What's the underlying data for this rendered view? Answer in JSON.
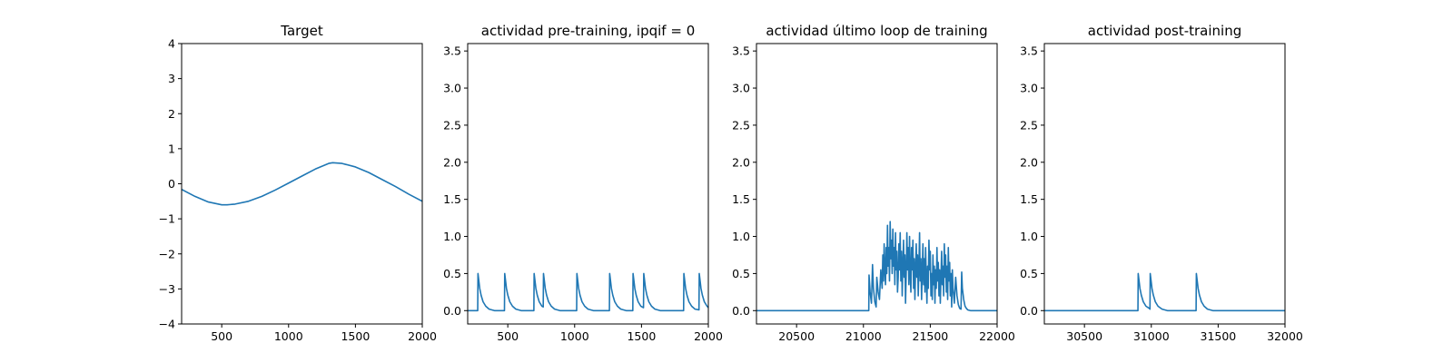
{
  "colors": {
    "line": "#1f77b4",
    "axis": "#000000",
    "background": "#ffffff"
  },
  "chart_data": [
    {
      "type": "line",
      "title": "Target",
      "xlim": [
        200,
        2000
      ],
      "ylim": [
        -4,
        4
      ],
      "xticks": [
        500,
        1000,
        1500,
        2000
      ],
      "yticks": [
        -4,
        -3,
        -2,
        -1,
        0,
        1,
        2,
        3,
        4
      ],
      "ytick_labels": [
        "−4",
        "−3",
        "−2",
        "−1",
        "0",
        "1",
        "2",
        "3",
        "4"
      ],
      "grid": false,
      "series": [
        {
          "x": [
            200,
            300,
            400,
            500,
            540,
            600,
            700,
            800,
            900,
            1000,
            1100,
            1200,
            1300,
            1330,
            1400,
            1500,
            1600,
            1700,
            1800,
            1900,
            2000
          ],
          "y": [
            -0.16,
            -0.36,
            -0.52,
            -0.6,
            -0.6,
            -0.58,
            -0.5,
            -0.36,
            -0.18,
            0.02,
            0.22,
            0.42,
            0.58,
            0.6,
            0.58,
            0.48,
            0.32,
            0.12,
            -0.08,
            -0.3,
            -0.5
          ]
        }
      ]
    },
    {
      "type": "line",
      "title": "actividad pre-training, ipqif = 0",
      "xlim": [
        200,
        2000
      ],
      "ylim": [
        -0.18,
        3.6
      ],
      "xticks": [
        500,
        1000,
        1500,
        2000
      ],
      "yticks": [
        0.0,
        0.5,
        1.0,
        1.5,
        2.0,
        2.5,
        3.0,
        3.5
      ],
      "ytick_labels": [
        "0.0",
        "0.5",
        "1.0",
        "1.5",
        "2.0",
        "2.5",
        "3.0",
        "3.5"
      ],
      "grid": false,
      "series": [
        {
          "x": [
            200,
            275,
            277,
            290,
            300,
            315,
            335,
            360,
            400,
            470,
            475,
            477,
            490,
            500,
            515,
            535,
            560,
            600,
            695,
            697,
            710,
            720,
            735,
            755,
            765,
            767,
            780,
            790,
            805,
            825,
            850,
            890,
            960,
            1015,
            1017,
            1030,
            1040,
            1055,
            1075,
            1100,
            1140,
            1260,
            1262,
            1275,
            1285,
            1300,
            1320,
            1345,
            1385,
            1435,
            1437,
            1450,
            1460,
            1475,
            1495,
            1515,
            1517,
            1530,
            1540,
            1555,
            1575,
            1600,
            1640,
            1720,
            1815,
            1817,
            1830,
            1840,
            1855,
            1875,
            1900,
            1930,
            1932,
            1945,
            1955,
            1970,
            1990,
            2000
          ],
          "y": [
            0.0,
            0.0,
            0.5,
            0.3,
            0.21,
            0.12,
            0.06,
            0.02,
            0.0,
            0.0,
            0.0,
            0.5,
            0.3,
            0.21,
            0.12,
            0.06,
            0.02,
            0.0,
            0.0,
            0.5,
            0.3,
            0.21,
            0.12,
            0.06,
            0.05,
            0.5,
            0.3,
            0.21,
            0.12,
            0.06,
            0.02,
            0.0,
            0.0,
            0.0,
            0.5,
            0.3,
            0.21,
            0.12,
            0.06,
            0.02,
            0.0,
            0.0,
            0.5,
            0.3,
            0.21,
            0.12,
            0.06,
            0.02,
            0.0,
            0.0,
            0.5,
            0.3,
            0.21,
            0.12,
            0.06,
            0.04,
            0.5,
            0.3,
            0.21,
            0.12,
            0.06,
            0.02,
            0.0,
            0.0,
            0.0,
            0.5,
            0.3,
            0.21,
            0.12,
            0.06,
            0.02,
            0.01,
            0.5,
            0.3,
            0.21,
            0.12,
            0.06,
            0.04
          ]
        }
      ]
    },
    {
      "type": "line",
      "title": "actividad último loop de training",
      "xlim": [
        20200,
        22000
      ],
      "ylim": [
        -0.18,
        3.6
      ],
      "xticks": [
        20500,
        21000,
        21500,
        22000
      ],
      "yticks": [
        0.0,
        0.5,
        1.0,
        1.5,
        2.0,
        2.5,
        3.0,
        3.5
      ],
      "ytick_labels": [
        "0.0",
        "0.5",
        "1.0",
        "1.5",
        "2.0",
        "2.5",
        "3.0",
        "3.5"
      ],
      "grid": false,
      "series": [
        {
          "x": [
            20200,
            21040,
            21042,
            21050,
            21060,
            21068,
            21075,
            21085,
            21095,
            21100,
            21110,
            21120,
            21130,
            21140,
            21145,
            21150,
            21155,
            21160,
            21165,
            21170,
            21175,
            21180,
            21185,
            21190,
            21195,
            21200,
            21205,
            21210,
            21215,
            21220,
            21225,
            21230,
            21235,
            21240,
            21245,
            21250,
            21255,
            21260,
            21265,
            21270,
            21275,
            21280,
            21285,
            21290,
            21295,
            21300,
            21305,
            21310,
            21315,
            21320,
            21325,
            21330,
            21335,
            21340,
            21345,
            21350,
            21355,
            21360,
            21365,
            21370,
            21375,
            21380,
            21385,
            21390,
            21395,
            21400,
            21405,
            21410,
            21415,
            21420,
            21425,
            21430,
            21435,
            21440,
            21445,
            21450,
            21455,
            21460,
            21465,
            21470,
            21475,
            21480,
            21485,
            21490,
            21495,
            21500,
            21505,
            21510,
            21515,
            21520,
            21525,
            21530,
            21535,
            21540,
            21545,
            21550,
            21555,
            21560,
            21565,
            21570,
            21575,
            21580,
            21585,
            21590,
            21595,
            21600,
            21605,
            21610,
            21615,
            21620,
            21625,
            21630,
            21635,
            21640,
            21645,
            21650,
            21655,
            21660,
            21665,
            21670,
            21680,
            21690,
            21700,
            21710,
            21720,
            21730,
            21735,
            21740,
            21750,
            21760,
            21770,
            21780,
            21800,
            22000
          ],
          "y": [
            0.0,
            0.0,
            0.48,
            0.25,
            0.1,
            0.62,
            0.3,
            0.12,
            0.05,
            0.45,
            0.25,
            0.15,
            0.55,
            0.3,
            0.75,
            0.4,
            0.9,
            0.55,
            0.35,
            0.85,
            0.5,
            1.15,
            0.6,
            0.85,
            0.4,
            1.2,
            0.7,
            0.95,
            0.5,
            1.1,
            0.6,
            0.85,
            0.35,
            1.05,
            0.55,
            0.8,
            0.25,
            0.45,
            0.9,
            0.55,
            1.05,
            0.4,
            0.8,
            0.2,
            0.6,
            0.95,
            0.45,
            0.75,
            0.1,
            0.5,
            1.05,
            0.55,
            0.85,
            0.35,
            1.0,
            0.5,
            0.25,
            0.85,
            0.55,
            0.95,
            0.3,
            0.7,
            0.15,
            0.55,
            0.9,
            0.45,
            0.75,
            0.2,
            0.6,
            1.05,
            0.4,
            0.7,
            0.15,
            0.55,
            0.9,
            0.35,
            0.7,
            0.25,
            0.85,
            0.45,
            0.1,
            0.6,
            0.3,
            0.95,
            0.55,
            0.8,
            0.2,
            0.5,
            0.15,
            0.75,
            0.35,
            0.6,
            0.1,
            0.55,
            0.3,
            0.85,
            0.4,
            0.65,
            0.2,
            0.55,
            0.1,
            0.45,
            0.8,
            0.35,
            0.6,
            0.2,
            0.9,
            0.45,
            0.75,
            0.25,
            0.6,
            0.15,
            0.85,
            0.4,
            0.65,
            0.2,
            0.5,
            0.05,
            0.55,
            0.3,
            0.1,
            0.45,
            0.2,
            0.08,
            0.03,
            0.02,
            0.52,
            0.3,
            0.15,
            0.06,
            0.03,
            0.01,
            0.0,
            0.0
          ]
        }
      ]
    },
    {
      "type": "line",
      "title": "actividad post-training",
      "xlim": [
        30200,
        32000
      ],
      "ylim": [
        -0.18,
        3.6
      ],
      "xticks": [
        30500,
        31000,
        31500,
        32000
      ],
      "yticks": [
        0.0,
        0.5,
        1.0,
        1.5,
        2.0,
        2.5,
        3.0,
        3.5
      ],
      "ytick_labels": [
        "0.0",
        "0.5",
        "1.0",
        "1.5",
        "2.0",
        "2.5",
        "3.0",
        "3.5"
      ],
      "grid": false,
      "series": [
        {
          "x": [
            30200,
            30900,
            30902,
            30915,
            30925,
            30940,
            30960,
            30985,
            30990,
            30992,
            31005,
            31015,
            31030,
            31050,
            31080,
            31120,
            31335,
            31337,
            31350,
            31360,
            31375,
            31395,
            31420,
            31460,
            32000
          ],
          "y": [
            0.0,
            0.0,
            0.5,
            0.3,
            0.21,
            0.12,
            0.06,
            0.03,
            0.02,
            0.5,
            0.3,
            0.21,
            0.12,
            0.06,
            0.02,
            0.0,
            0.0,
            0.5,
            0.3,
            0.21,
            0.12,
            0.06,
            0.02,
            0.0,
            0.0
          ]
        }
      ]
    }
  ]
}
